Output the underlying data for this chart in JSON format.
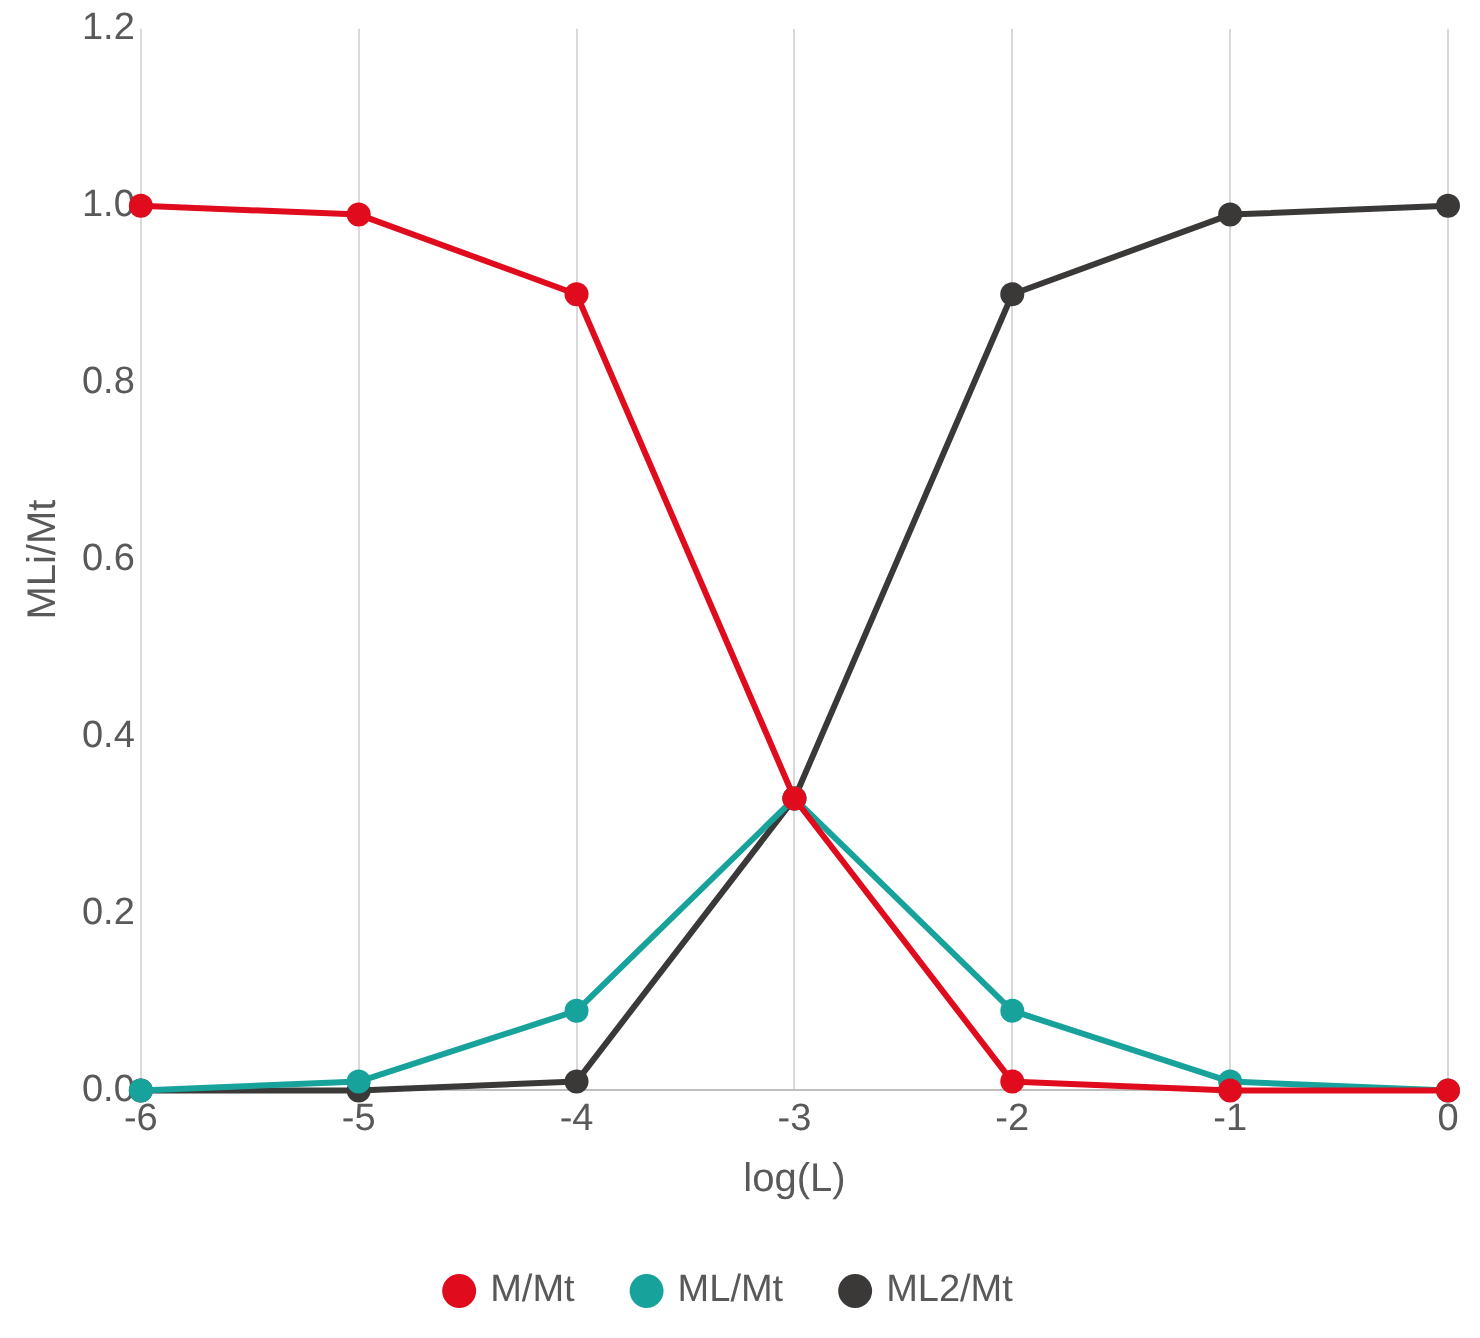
{
  "chart_data": {
    "type": "line",
    "xlabel": "log(L)",
    "ylabel": "MLi/Mt",
    "x": [
      -6,
      -5,
      -4,
      -3,
      -2,
      -1,
      0
    ],
    "series": [
      {
        "name": "M/Mt",
        "color": "#e00b1c",
        "values": [
          1.0,
          0.99,
          0.9,
          0.33,
          0.01,
          0.0,
          0.0
        ]
      },
      {
        "name": "ML/Mt",
        "color": "#17a39b",
        "values": [
          0,
          0.01,
          0.09,
          0.33,
          0.09,
          0.01,
          0
        ]
      },
      {
        "name": "ML2/Mt",
        "color": "#3b3838",
        "values": [
          0,
          0,
          0.01,
          0.33,
          0.9,
          0.99,
          1.0
        ]
      }
    ],
    "xlim": [
      -6,
      0
    ],
    "xticks": [
      -6,
      -5,
      -4,
      -3,
      -2,
      -1,
      0
    ],
    "ylim": [
      0,
      1.2
    ],
    "yticks": [
      {
        "value": 0,
        "label": "0.0"
      },
      {
        "value": 0.2,
        "label": "0.2"
      },
      {
        "value": 0.4,
        "label": "0.4"
      },
      {
        "value": 0.6,
        "label": "0.6"
      },
      {
        "value": 0.8,
        "label": "0.8"
      },
      {
        "value": 1.0,
        "label": "1.0"
      },
      {
        "value": 1.2,
        "label": "1.2"
      }
    ],
    "grid": "x",
    "legend": "bottom",
    "marker": "circle",
    "line_style": "solid"
  }
}
